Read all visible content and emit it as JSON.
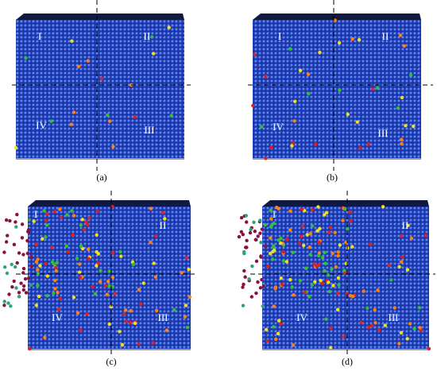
{
  "panels": [
    {
      "caption": "(a)",
      "quadrants": [
        "I",
        "II",
        "III",
        "IV"
      ]
    },
    {
      "caption": "(b)",
      "quadrants": [
        "I",
        "II",
        "III",
        "IV"
      ]
    },
    {
      "caption": "(c)",
      "quadrants": [
        "I",
        "II",
        "III",
        "IV"
      ]
    },
    {
      "caption": "(d)",
      "quadrants": [
        "I",
        "II",
        "III",
        "IV"
      ]
    }
  ]
}
